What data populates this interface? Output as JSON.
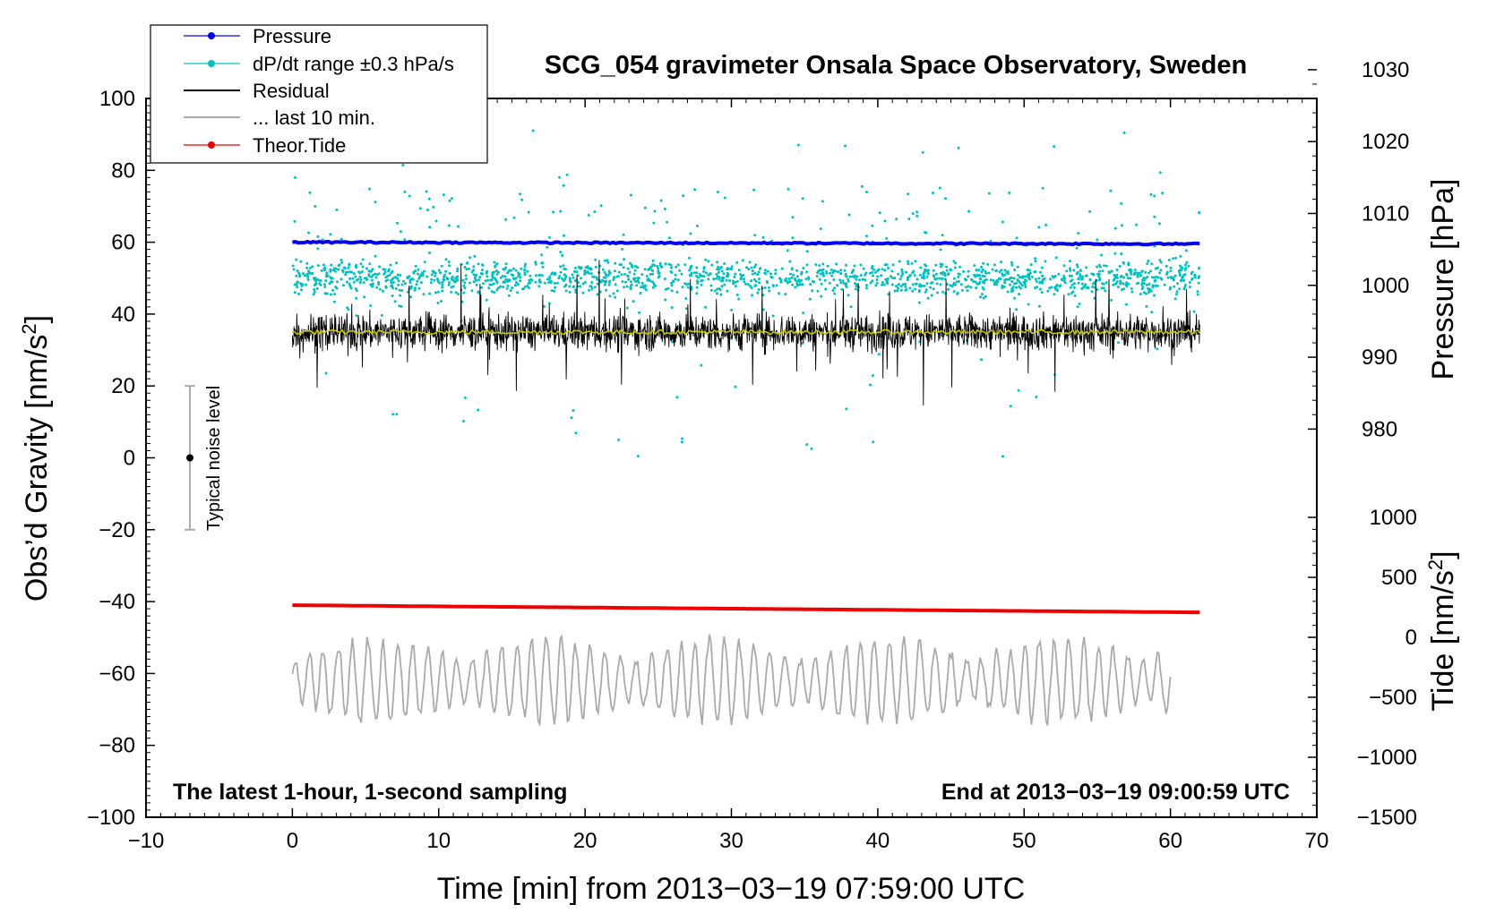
{
  "chart_data": {
    "type": "line",
    "title": "SCG_054 gravimeter Onsala Space Observatory, Sweden",
    "xlabel": "Time [min] from 2013−03−19 07:59:00 UTC",
    "ylabel_left": "Obs’d Gravity [nm/s",
    "ylabel_left_sup": "2",
    "ylabel_left_end": "]",
    "ylabel_right_pressure": "Pressure [hPa]",
    "ylabel_right_tide": "Tide [nm/s",
    "ylabel_right_tide_sup": "2",
    "ylabel_right_tide_end": "]",
    "xlim": [
      -10,
      70
    ],
    "ylim": [
      -100,
      100
    ],
    "x_ticks": [
      -10,
      0,
      10,
      20,
      30,
      40,
      50,
      60,
      70
    ],
    "x_tick_labels": [
      "−10",
      "0",
      "10",
      "20",
      "30",
      "40",
      "50",
      "60",
      "70"
    ],
    "y_ticks": [
      -100,
      -80,
      -60,
      -40,
      -20,
      0,
      20,
      40,
      60,
      80,
      100
    ],
    "y_tick_labels": [
      "−100",
      "−80",
      "−60",
      "−40",
      "−20",
      "0",
      "20",
      "40",
      "60",
      "80",
      "100"
    ],
    "pressure_axis": {
      "ylim_equiv": [
        1030,
        980
      ],
      "ticks": [
        1030,
        1020,
        1010,
        1000,
        990,
        980
      ],
      "tick_labels": [
        "1030",
        "1020",
        "1010",
        "1000",
        "990",
        "980"
      ]
    },
    "tide_axis": {
      "ticks": [
        1000,
        500,
        0,
        -500,
        -1000,
        -1500
      ],
      "tick_labels": [
        "1000",
        "500",
        "0",
        "−500",
        "−1000",
        "−1500"
      ],
      "range": [
        -1500,
        1000
      ]
    },
    "series": [
      {
        "name": "Pressure",
        "color": "#0000ee",
        "marker": "dot",
        "x_range": [
          0,
          62
        ],
        "left_axis_level": [
          60,
          59.5
        ],
        "pressure_hpa": [
          1006,
          1005.9
        ]
      },
      {
        "name": "dP/dt range ±0.3 hPa/s",
        "color": "#00c0c0",
        "marker": "dot",
        "x_range": [
          0,
          62
        ],
        "left_axis_center": 50,
        "left_axis_spread": [
          0,
          94
        ]
      },
      {
        "name": "Residual",
        "color": "#000000",
        "x_range": [
          0,
          62
        ],
        "left_axis_center": 35,
        "left_axis_spread": [
          8,
          56
        ]
      },
      {
        "name": "... last 10 min.",
        "color": "#aaaaaa",
        "x_range": [
          0,
          60
        ],
        "left_axis_center": -62,
        "left_axis_spread": [
          -77,
          -47
        ]
      },
      {
        "name": "Theor.Tide",
        "color": "#ee0000",
        "marker": "dot",
        "x_range": [
          0,
          62
        ],
        "left_axis_level": [
          -41,
          -43
        ]
      }
    ],
    "smoothed_residual": {
      "color": "#c8c800",
      "left_axis_level": 35
    },
    "noise_bar": {
      "label": "Typical noise level",
      "x": -7,
      "center": 0,
      "range": [
        -20,
        20
      ]
    },
    "annotation_left": "The latest 1-hour, 1-second sampling",
    "annotation_right": "End at 2013−03−19 09:00:59 UTC"
  }
}
